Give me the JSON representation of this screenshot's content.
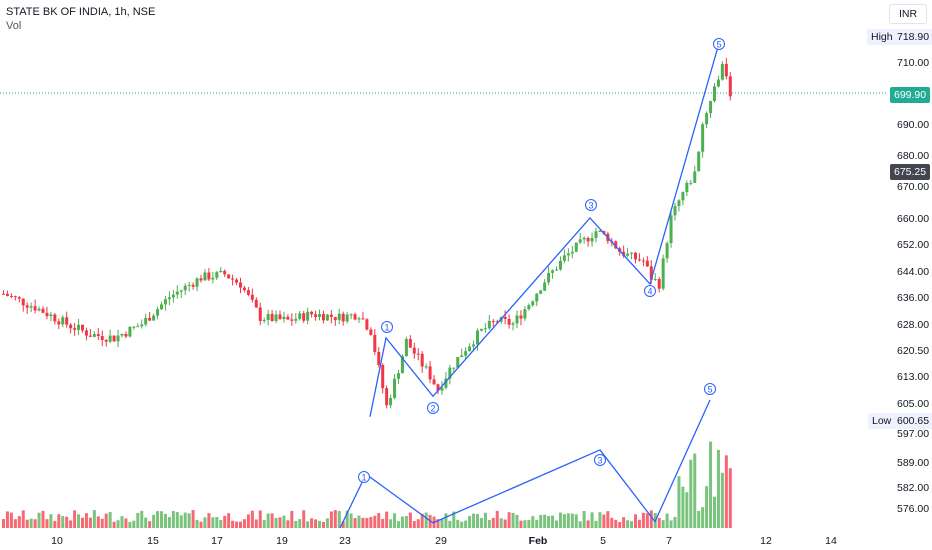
{
  "header": {
    "symbol_line": "STATE BK OF INDIA, 1h, NSE",
    "volume_label": "Vol"
  },
  "currency_button": "INR",
  "tags": {
    "high_label": "High",
    "high_value": "718.90",
    "low_label": "Low",
    "low_value": "600.65",
    "last_price": "699.90",
    "marker_price": "675.25"
  },
  "colors": {
    "up": "#4caf50",
    "down": "#f23645",
    "wave": "#2962ff",
    "last_price_bg": "#22ab94"
  },
  "chart_data": {
    "type": "candlestick",
    "title": "STATE BK OF INDIA, 1h, NSE",
    "ylim": [
      571,
      725
    ],
    "y_ticks": [
      "710.00",
      "690.00",
      "680.00",
      "670.00",
      "660.00",
      "652.00",
      "644.00",
      "636.00",
      "628.00",
      "620.50",
      "613.00",
      "605.00",
      "597.00",
      "589.00",
      "582.00",
      "576.00"
    ],
    "x_ticks": [
      "10",
      "15",
      "17",
      "19",
      "23",
      "29",
      "Feb",
      "5",
      "7",
      "12",
      "14"
    ],
    "price_waypoints": [
      [
        0,
        637
      ],
      [
        8,
        633
      ],
      [
        16,
        628
      ],
      [
        22,
        625
      ],
      [
        28,
        624
      ],
      [
        35,
        628
      ],
      [
        42,
        636
      ],
      [
        50,
        642
      ],
      [
        56,
        643
      ],
      [
        60,
        640
      ],
      [
        65,
        630
      ],
      [
        72,
        629
      ],
      [
        78,
        631
      ],
      [
        85,
        630
      ],
      [
        90,
        631
      ],
      [
        93,
        626
      ],
      [
        95,
        615
      ],
      [
        97,
        604
      ],
      [
        100,
        615
      ],
      [
        102,
        623
      ],
      [
        105,
        618
      ],
      [
        108,
        613
      ],
      [
        110,
        609
      ],
      [
        113,
        615
      ],
      [
        117,
        621
      ],
      [
        121,
        626
      ],
      [
        125,
        629
      ],
      [
        129,
        628
      ],
      [
        133,
        634
      ],
      [
        137,
        641
      ],
      [
        142,
        648
      ],
      [
        146,
        652
      ],
      [
        150,
        656
      ],
      [
        153,
        654
      ],
      [
        156,
        650
      ],
      [
        159,
        648
      ],
      [
        162,
        647
      ],
      [
        164,
        642
      ],
      [
        166,
        640
      ],
      [
        169,
        660
      ],
      [
        172,
        668
      ],
      [
        175,
        674
      ],
      [
        177,
        690
      ],
      [
        179,
        698
      ],
      [
        181,
        705
      ],
      [
        182,
        708
      ],
      [
        183,
        706
      ],
      [
        184,
        700
      ]
    ],
    "candle_count": 185,
    "waves": {
      "price": [
        [
          "start",
          601
        ],
        [
          "1",
          624
        ],
        [
          "2",
          607
        ],
        [
          "3",
          660
        ],
        [
          "4",
          640
        ],
        [
          "5",
          715
        ]
      ],
      "volume": [
        [
          "start",
          0
        ],
        [
          "1",
          0.42
        ],
        [
          "2",
          0.04
        ],
        [
          "3",
          0.61
        ],
        [
          "4",
          0.05
        ],
        [
          "5",
          1.0
        ]
      ]
    },
    "wave_labels": [
      "1",
      "2",
      "3",
      "4",
      "5"
    ],
    "high": 718.9,
    "low": 600.65,
    "last": 699.9
  }
}
